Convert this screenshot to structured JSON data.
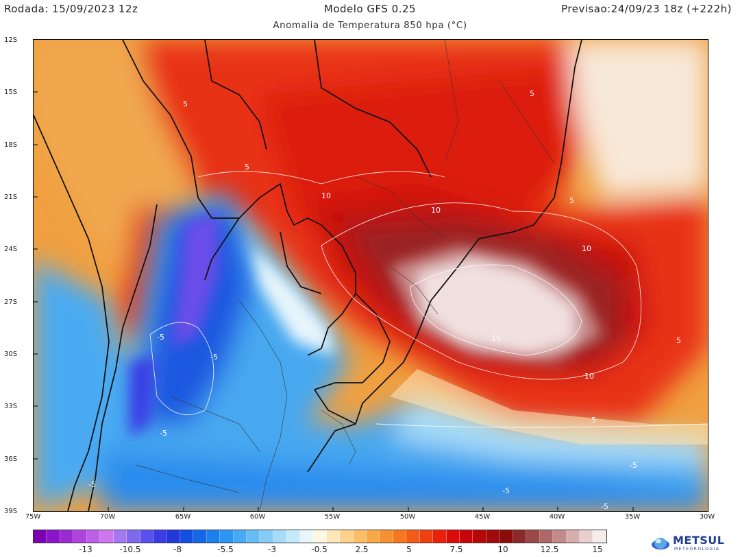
{
  "header": {
    "run": "Rodada: 15/09/2023 12z",
    "model": "Modelo GFS 0.25",
    "forecast": "Previsao:24/09/23 18z (+222h)",
    "subtitle": "Anomalia de Temperatura 850 hpa (°C)"
  },
  "map": {
    "lat_labels": [
      "12S",
      "15S",
      "18S",
      "21S",
      "24S",
      "27S",
      "30S",
      "33S",
      "36S",
      "39S"
    ],
    "lon_labels": [
      "75W",
      "70W",
      "65W",
      "60W",
      "55W",
      "50W",
      "45W",
      "40W",
      "35W",
      "30W"
    ],
    "contour_labels": [
      "5",
      "5",
      "10",
      "10",
      "10",
      "15",
      "5",
      "10",
      "5",
      "5",
      "-5",
      "-5",
      "-5",
      "-5",
      "-5",
      "-5",
      "-5",
      "5"
    ]
  },
  "colorbar": {
    "colors": [
      "#7b00b4",
      "#8c14c8",
      "#9c2ad4",
      "#ad44de",
      "#bd5ee6",
      "#cc78ec",
      "#a478f0",
      "#7f68f0",
      "#5a50ec",
      "#3a3ce4",
      "#2238dc",
      "#1450e0",
      "#1468e6",
      "#1c80ec",
      "#2c96f0",
      "#48aaf2",
      "#66bcf4",
      "#86ccf6",
      "#a6dcf8",
      "#c6eafa",
      "#e8f6fc",
      "#fff6e4",
      "#fde6b8",
      "#fcd28c",
      "#fbbd66",
      "#f9a848",
      "#f79030",
      "#f5781e",
      "#f25c16",
      "#ee4010",
      "#e8200c",
      "#dc0a0a",
      "#c8060a",
      "#b40808",
      "#a00a0a",
      "#8c0c0c",
      "#8a2a2a",
      "#9a4848",
      "#ae6868",
      "#c28a8a",
      "#d6aeae",
      "#e8d0d0",
      "#f6ecec"
    ],
    "labels": [
      "-13",
      "-10.5",
      "-8",
      "-5.5",
      "-3",
      "-0.5",
      "2.5",
      "5",
      "7.5",
      "10",
      "12.5",
      "15"
    ]
  },
  "logo": {
    "name": "METSUL",
    "sub": "METEOROLOGIA"
  }
}
